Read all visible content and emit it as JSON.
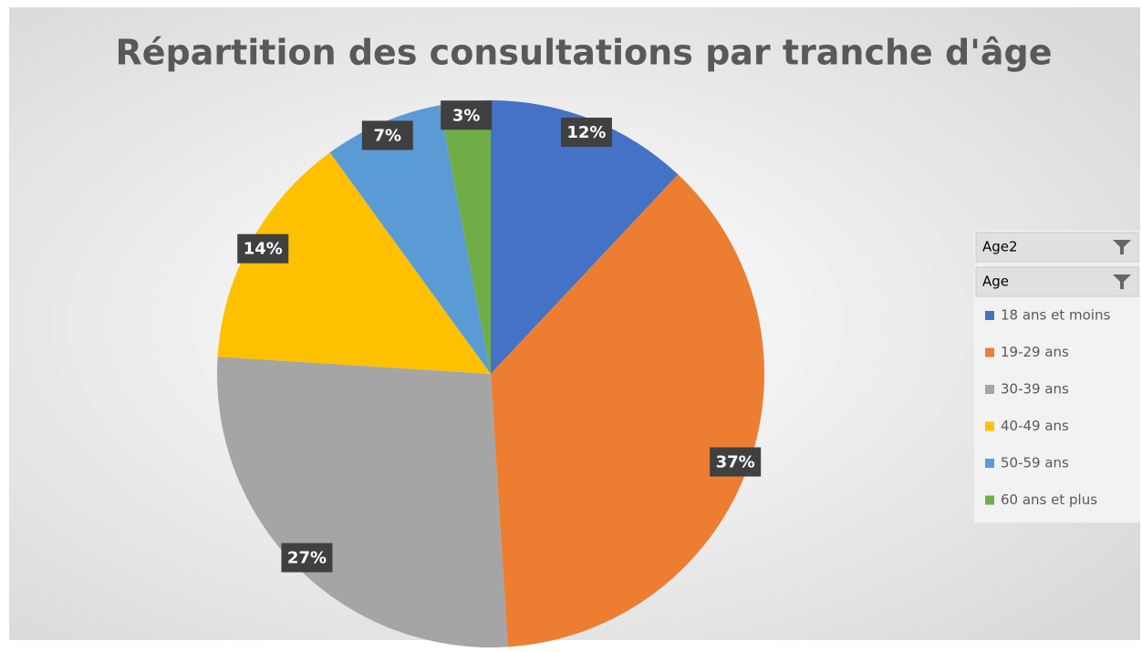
{
  "chart_data": {
    "type": "pie",
    "title": "Répartition des consultations par tranche d'âge",
    "categories": [
      "18 ans et moins",
      "19-29 ans",
      "30-39 ans",
      "40-49 ans",
      "50-59 ans",
      "60 ans et plus"
    ],
    "values": [
      12,
      37,
      27,
      14,
      7,
      3
    ],
    "value_labels": [
      "12%",
      "37%",
      "27%",
      "14%",
      "7%",
      "3%"
    ],
    "colors": [
      "#4472c4",
      "#ed7d31",
      "#a5a5a5",
      "#ffc000",
      "#5b9bd5",
      "#70ad47"
    ],
    "filter_buttons": [
      "Age2",
      "Age"
    ],
    "legend": "right"
  }
}
